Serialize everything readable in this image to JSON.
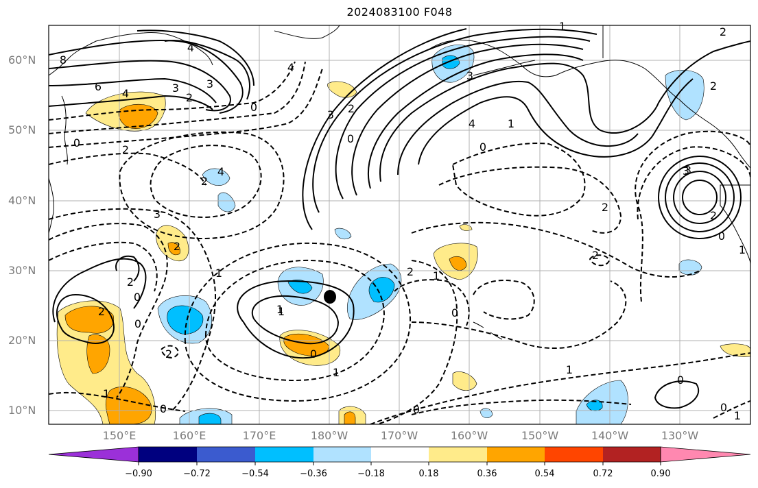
{
  "title": "2024083100 F048",
  "colors": {
    "background": "#ffffff",
    "gridline": "#b0b0b0",
    "contour": "#000000",
    "coastline": "#000000",
    "axis_label": "#7a7a7a"
  },
  "lat_labels": [
    {
      "text": "60°N",
      "lat": 60
    },
    {
      "text": "50°N",
      "lat": 50
    },
    {
      "text": "40°N",
      "lat": 40
    },
    {
      "text": "30°N",
      "lat": 30
    },
    {
      "text": "20°N",
      "lat": 20
    },
    {
      "text": "10°N",
      "lat": 10
    }
  ],
  "lon_labels": [
    {
      "text": "150°E",
      "lon": 150
    },
    {
      "text": "160°E",
      "lon": 160
    },
    {
      "text": "170°E",
      "lon": 170
    },
    {
      "text": "180°W",
      "lon": 180
    },
    {
      "text": "170°W",
      "lon": 190
    },
    {
      "text": "160°W",
      "lon": 200
    },
    {
      "text": "150°W",
      "lon": 210
    },
    {
      "text": "140°W",
      "lon": 220
    },
    {
      "text": "130°W",
      "lon": 230
    }
  ],
  "colorbar": {
    "colors": [
      "#9b30d9",
      "#00007f",
      "#3b5bcf",
      "#00bfff",
      "#b0e2ff",
      "#ffffff",
      "#ffeb8a",
      "#ffa500",
      "#ff4500",
      "#b22222",
      "#ff88b0"
    ],
    "labels": [
      "−0.90",
      "−0.72",
      "−0.54",
      "−0.36",
      "−0.18",
      "0.18",
      "0.36",
      "0.54",
      "0.72",
      "0.90"
    ]
  },
  "contour_labels": [
    "8",
    "6",
    "4",
    "3",
    "2",
    "0",
    "4",
    "3",
    "2",
    "2",
    "4",
    "3",
    "2",
    "0",
    "4",
    "1",
    "0",
    "3",
    "2",
    "4",
    "2",
    "3",
    "2",
    "0",
    "3",
    "2",
    "1",
    "1",
    "0",
    "2",
    "2",
    "1",
    "2",
    "1",
    "0",
    "0",
    "1",
    "1",
    "0",
    "2",
    "3",
    "0",
    "1",
    "2",
    "1",
    "0",
    "0",
    "2",
    "1",
    "0",
    "0",
    "1"
  ],
  "marker": {
    "name": "low-center",
    "lat": 26,
    "lon": 180
  }
}
